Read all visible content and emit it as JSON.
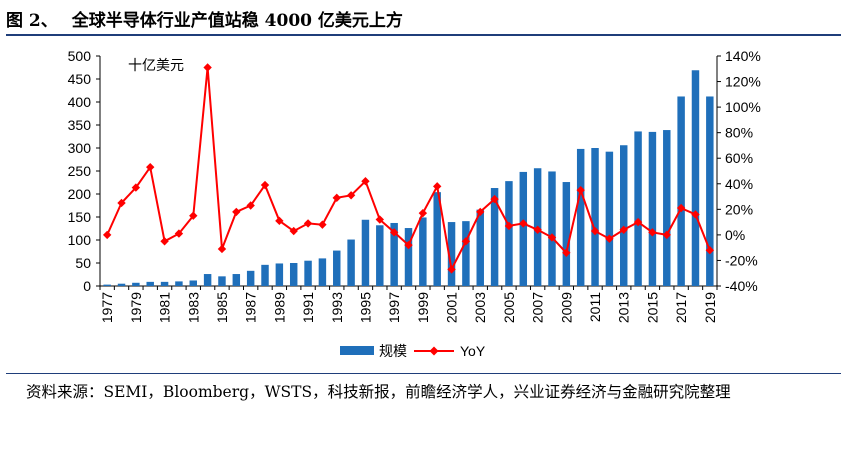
{
  "figure": {
    "label": "图 2、",
    "title": "全球半导体行业产值站稳 4000 亿美元上方"
  },
  "source_note": "资料来源：SEMI，Bloomberg，WSTS，科技新报，前瞻经济学人，兴业证券经济与金融研究院整理",
  "colors": {
    "bar": "#1f6fba",
    "line": "#ff0000",
    "rule": "#1f3e7a"
  },
  "chart_data": {
    "type": "bar+line",
    "unit_label": "十亿美元",
    "x_tick_labels": [
      "1977",
      "1979",
      "1981",
      "1983",
      "1985",
      "1987",
      "1989",
      "1991",
      "1993",
      "1995",
      "1997",
      "1999",
      "2001",
      "2003",
      "2005",
      "2007",
      "2009",
      "2011",
      "2013",
      "2015",
      "2017",
      "2019"
    ],
    "years": [
      1977,
      1978,
      1979,
      1980,
      1981,
      1982,
      1983,
      1984,
      1985,
      1986,
      1987,
      1988,
      1989,
      1990,
      1991,
      1992,
      1993,
      1994,
      1995,
      1996,
      1997,
      1998,
      1999,
      2000,
      2001,
      2002,
      2003,
      2004,
      2005,
      2006,
      2007,
      2008,
      2009,
      2010,
      2011,
      2012,
      2013,
      2014,
      2015,
      2016,
      2017,
      2018,
      2019
    ],
    "left_axis": {
      "ylim": [
        0,
        500
      ],
      "ticks": [
        "0",
        "50",
        "100",
        "150",
        "200",
        "250",
        "300",
        "350",
        "400",
        "450",
        "500"
      ]
    },
    "right_axis": {
      "ylim": [
        -40,
        140
      ],
      "ticks": [
        "-40%",
        "-20%",
        "0%",
        "20%",
        "40%",
        "60%",
        "80%",
        "100%",
        "120%",
        "140%"
      ]
    },
    "series": [
      {
        "name": "规模",
        "kind": "bar",
        "axis": "left",
        "values": [
          3,
          5,
          7,
          9,
          9,
          10,
          12,
          26,
          21,
          26,
          33,
          46,
          49,
          50,
          55,
          60,
          77,
          101,
          144,
          132,
          137,
          126,
          149,
          204,
          139,
          141,
          166,
          213,
          228,
          248,
          256,
          249,
          226,
          298,
          300,
          292,
          306,
          336,
          335,
          339,
          412,
          469,
          412
        ]
      },
      {
        "name": "YoY",
        "kind": "line",
        "axis": "right",
        "values": [
          0,
          25,
          37,
          53,
          -5,
          1,
          15,
          131,
          -11,
          18,
          23,
          39,
          11,
          3,
          9,
          8,
          29,
          31,
          42,
          12,
          2,
          -8,
          17,
          38,
          -27,
          -5,
          18,
          28,
          7,
          9,
          4,
          -2,
          -14,
          35,
          3,
          -3,
          4,
          10,
          2,
          0,
          21,
          16,
          -12
        ]
      }
    ],
    "legend": {
      "position": "bottom-center",
      "entries": [
        "规模",
        "YoY"
      ]
    }
  }
}
